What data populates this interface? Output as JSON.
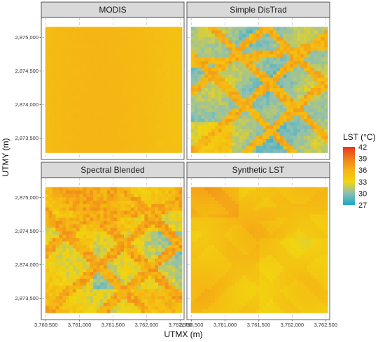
{
  "chart_data": {
    "type": "heatmap",
    "panels": [
      {
        "key": "modis",
        "title": "MODIS"
      },
      {
        "key": "simple",
        "title": "Simple DisTrad"
      },
      {
        "key": "spectral",
        "title": "Spectral Blended"
      },
      {
        "key": "synthetic",
        "title": "Synthetic LST"
      }
    ],
    "xlabel": "UTMX (m)",
    "ylabel": "UTMY (m)",
    "x_ticks": [
      "3,760,500",
      "3,761,000",
      "3,761,500",
      "3,762,000",
      "3,762,500"
    ],
    "y_ticks": [
      "2,873,500",
      "2,874,000",
      "2,874,500",
      "2,875,000"
    ],
    "xlim": [
      3760430,
      3762560
    ],
    "ylim": [
      2873180,
      2875300
    ],
    "data_extent": {
      "x": [
        3760490,
        3762530
      ],
      "y": [
        2873280,
        2875160
      ]
    },
    "legend": {
      "title": "LST (°C)",
      "position": "right",
      "labels": [
        "42",
        "39",
        "36",
        "33",
        "30",
        "27"
      ],
      "values": [
        42,
        39,
        36,
        33,
        30,
        27
      ],
      "colors": [
        "#e8351c",
        "#f07d1e",
        "#f5b314",
        "#f2d410",
        "#8cbfb4",
        "#17a8c9"
      ]
    }
  }
}
